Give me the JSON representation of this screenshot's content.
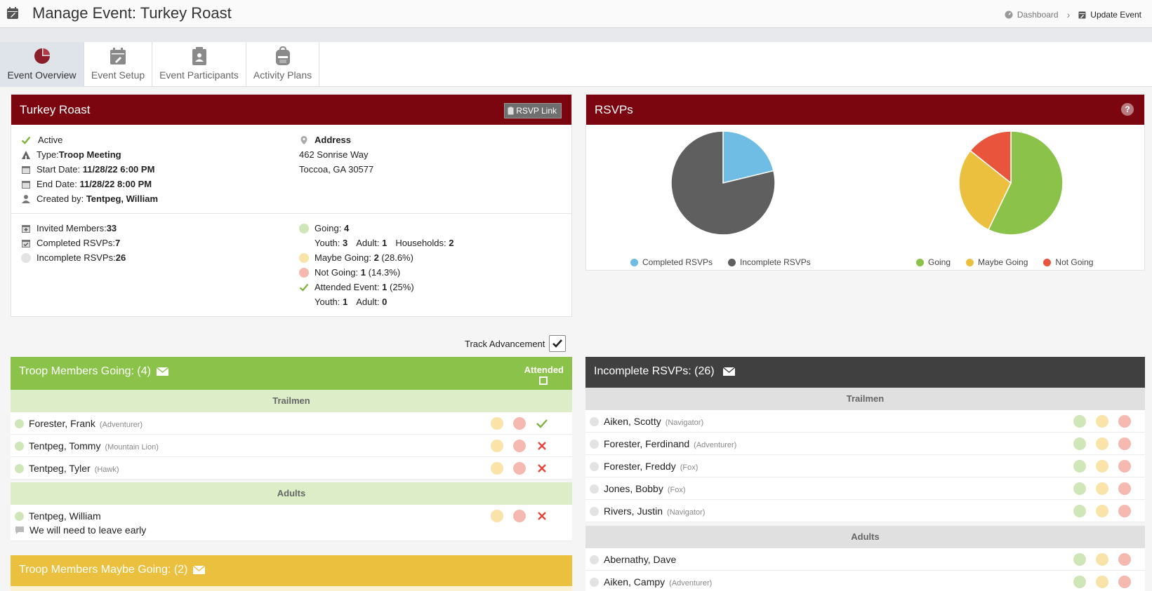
{
  "header": {
    "title": "Manage Event: Turkey Roast",
    "breadcrumb": {
      "dashboard": "Dashboard",
      "current": "Update Event"
    }
  },
  "tabs": [
    {
      "label": "Event Overview",
      "icon": "pie-chart-icon",
      "active": true
    },
    {
      "label": "Event Setup",
      "icon": "calendar-edit-icon",
      "active": false
    },
    {
      "label": "Event Participants",
      "icon": "clipboard-person-icon",
      "active": false
    },
    {
      "label": "Activity Plans",
      "icon": "backpack-icon",
      "active": false
    }
  ],
  "event": {
    "title": "Turkey Roast",
    "rsvp_link": "RSVP Link",
    "status": "Active",
    "type_label": "Type:",
    "type_value": "Troop Meeting",
    "start_label": "Start Date:",
    "start_value": "11/28/22 6:00 PM",
    "end_label": "End Date:",
    "end_value": "11/28/22 8:00 PM",
    "created_label": "Created by:",
    "created_value": "Tentpeg, William",
    "address_label": "Address",
    "address_line1": "462 Sonrise Way",
    "address_line2": "Toccoa, GA 30577"
  },
  "stats": {
    "invited_label": "Invited Members:",
    "invited_value": "33",
    "completed_label": "Completed RSVPs:",
    "completed_value": "7",
    "incomplete_label": "Incomplete RSVPs:",
    "incomplete_value": "26",
    "going_label": "Going:",
    "going_value": "4",
    "going_youth_label": "Youth:",
    "going_youth_value": "3",
    "going_adult_label": "Adult:",
    "going_adult_value": "1",
    "households_label": "Households:",
    "households_value": "2",
    "maybe_label": "Maybe Going:",
    "maybe_value": "2",
    "maybe_pct": "(28.6%)",
    "not_label": "Not Going:",
    "not_value": "1",
    "not_pct": "(14.3%)",
    "attended_label": "Attended Event:",
    "attended_value": "1",
    "attended_pct": "(25%)",
    "att_youth_label": "Youth:",
    "att_youth_value": "1",
    "att_adult_label": "Adult:",
    "att_adult_value": "0"
  },
  "rsvps_panel": {
    "title": "RSVPs",
    "help": "?"
  },
  "chart_data": [
    {
      "type": "pie",
      "categories": [
        "Completed RSVPs",
        "Incomplete RSVPs"
      ],
      "values": [
        7,
        26
      ],
      "colors": [
        "#6fbde4",
        "#5f5f5f"
      ],
      "legend": "bottom"
    },
    {
      "type": "pie",
      "categories": [
        "Going",
        "Maybe Going",
        "Not Going"
      ],
      "values": [
        4,
        2,
        1
      ],
      "colors": [
        "#8bc34a",
        "#ebc03e",
        "#e8553c"
      ],
      "legend": "bottom"
    }
  ],
  "track_advancement": {
    "label": "Track Advancement",
    "checked": true
  },
  "going_section": {
    "title": "Troop Members Going: (4)",
    "attended_label": "Attended",
    "groups": [
      {
        "label": "Trailmen",
        "rows": [
          {
            "name": "Forester, Frank",
            "rank": "(Adventurer)",
            "attended": "yes"
          },
          {
            "name": "Tentpeg, Tommy",
            "rank": "(Mountain Lion)",
            "attended": "no"
          },
          {
            "name": "Tentpeg, Tyler",
            "rank": "(Hawk)",
            "attended": "no"
          }
        ]
      },
      {
        "label": "Adults",
        "rows": [
          {
            "name": "Tentpeg, William",
            "rank": "",
            "attended": "no",
            "comment": "We will need to leave early"
          }
        ]
      }
    ]
  },
  "maybe_section": {
    "title": "Troop Members Maybe Going: (2)"
  },
  "incomplete_section": {
    "title": "Incomplete RSVPs: (26)",
    "groups": [
      {
        "label": "Trailmen",
        "rows": [
          {
            "name": "Aiken, Scotty",
            "rank": "(Navigator)"
          },
          {
            "name": "Forester, Ferdinand",
            "rank": "(Adventurer)"
          },
          {
            "name": "Forester, Freddy",
            "rank": "(Fox)"
          },
          {
            "name": "Jones, Bobby",
            "rank": "(Fox)"
          },
          {
            "name": "Rivers, Justin",
            "rank": "(Navigator)"
          }
        ]
      },
      {
        "label": "Adults",
        "rows": [
          {
            "name": "Abernathy, Dave",
            "rank": ""
          },
          {
            "name": "Aiken, Campy",
            "rank": "(Adventurer)"
          }
        ]
      }
    ]
  },
  "colors": {
    "header_red": "#7b0610",
    "going_green": "#8bc34a",
    "going_light": "#dcedc8",
    "maybe_yellow": "#ebc03e",
    "not_red": "#e8553c",
    "dark_header": "#404040"
  }
}
